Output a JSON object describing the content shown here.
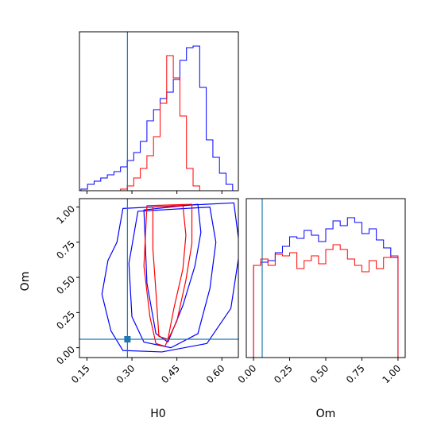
{
  "chart_data": {
    "type": "corner",
    "colors": {
      "series_a": "#0000ff",
      "series_b": "#ff0000",
      "truth": "#1f77b4",
      "frame": "#000000"
    },
    "parameters": [
      "H0",
      "Om"
    ],
    "truth": {
      "H0": 0.285,
      "Om": 0.06
    },
    "panels": [
      {
        "id": "hist-h0",
        "kind": "histogram",
        "xlim": [
          0.125,
          0.655
        ],
        "ylim": [
          0,
          1.0
        ],
        "bins": [
          0.13,
          0.152,
          0.174,
          0.196,
          0.218,
          0.24,
          0.262,
          0.284,
          0.306,
          0.328,
          0.35,
          0.372,
          0.394,
          0.416,
          0.438,
          0.46,
          0.482,
          0.504,
          0.526,
          0.548,
          0.57,
          0.592,
          0.614,
          0.636
        ],
        "series": [
          {
            "values": [
              0.01,
              0.04,
              0.06,
              0.08,
              0.1,
              0.12,
              0.15,
              0.19,
              0.24,
              0.31,
              0.44,
              0.51,
              0.58,
              0.62,
              0.7,
              0.82,
              0.9,
              0.91,
              0.65,
              0.32,
              0.21,
              0.11,
              0.04
            ]
          },
          {
            "values": [
              0,
              0,
              0,
              0,
              0,
              0,
              0.01,
              0.03,
              0.08,
              0.14,
              0.22,
              0.34,
              0.55,
              0.85,
              0.71,
              0.47,
              0.14,
              0.03,
              0,
              0,
              0,
              0,
              0
            ]
          }
        ]
      },
      {
        "id": "hist-om",
        "kind": "histogram",
        "xlim": [
          -0.05,
          1.05
        ],
        "ylim": [
          0,
          1.0
        ],
        "bins": [
          0.0,
          0.05,
          0.1,
          0.15,
          0.2,
          0.25,
          0.3,
          0.35,
          0.4,
          0.45,
          0.5,
          0.55,
          0.6,
          0.65,
          0.7,
          0.75,
          0.8,
          0.85,
          0.9,
          0.95,
          1.0
        ],
        "series": [
          {
            "values": [
              0.58,
              0.6,
              0.61,
              0.66,
              0.7,
              0.76,
              0.75,
              0.8,
              0.77,
              0.73,
              0.81,
              0.86,
              0.83,
              0.88,
              0.85,
              0.78,
              0.81,
              0.74,
              0.69,
              0.63
            ]
          },
          {
            "values": [
              0.58,
              0.62,
              0.58,
              0.65,
              0.64,
              0.66,
              0.56,
              0.61,
              0.64,
              0.59,
              0.68,
              0.71,
              0.68,
              0.62,
              0.58,
              0.54,
              0.61,
              0.56,
              0.63,
              0.64
            ]
          }
        ]
      },
      {
        "id": "contour-h0-om",
        "kind": "contour",
        "xlim": [
          0.125,
          0.655
        ],
        "ylim": [
          -0.07,
          1.06
        ],
        "series": [
          {
            "levels": [
              [
                [
                  0.27,
                  0.99
                ],
                [
                  0.25,
                  0.75
                ],
                [
                  0.22,
                  0.62
                ],
                [
                  0.2,
                  0.38
                ],
                [
                  0.23,
                  0.12
                ],
                [
                  0.27,
                  -0.02
                ],
                [
                  0.4,
                  -0.03
                ],
                [
                  0.55,
                  0.03
                ],
                [
                  0.63,
                  0.28
                ],
                [
                  0.66,
                  0.7
                ],
                [
                  0.64,
                  1.03
                ]
              ],
              [
                [
                  0.32,
                  0.97
                ],
                [
                  0.29,
                  0.6
                ],
                [
                  0.3,
                  0.22
                ],
                [
                  0.34,
                  0.04
                ],
                [
                  0.43,
                  0.0
                ],
                [
                  0.52,
                  0.1
                ],
                [
                  0.56,
                  0.42
                ],
                [
                  0.58,
                  0.75
                ],
                [
                  0.56,
                  1.0
                ]
              ],
              [
                [
                  0.34,
                  0.98
                ],
                [
                  0.35,
                  0.46
                ],
                [
                  0.38,
                  0.1
                ],
                [
                  0.42,
                  0.04
                ],
                [
                  0.47,
                  0.3
                ],
                [
                  0.51,
                  0.58
                ],
                [
                  0.53,
                  0.82
                ],
                [
                  0.52,
                  1.02
                ]
              ]
            ]
          },
          {
            "levels": [
              [
                [
                  0.35,
                  1.01
                ],
                [
                  0.34,
                  0.58
                ],
                [
                  0.36,
                  0.22
                ],
                [
                  0.38,
                  0.03
                ],
                [
                  0.41,
                  0.01
                ],
                [
                  0.45,
                  0.19
                ],
                [
                  0.48,
                  0.48
                ],
                [
                  0.5,
                  0.74
                ],
                [
                  0.5,
                  1.02
                ]
              ],
              [
                [
                  0.37,
                  1.0
                ],
                [
                  0.37,
                  0.7
                ],
                [
                  0.38,
                  0.4
                ],
                [
                  0.39,
                  0.08
                ],
                [
                  0.42,
                  0.06
                ],
                [
                  0.44,
                  0.28
                ],
                [
                  0.47,
                  0.56
                ],
                [
                  0.48,
                  0.8
                ],
                [
                  0.47,
                  1.01
                ]
              ]
            ]
          }
        ]
      }
    ],
    "axes": {
      "x_h0": {
        "label": "H0",
        "ticks": [
          0.15,
          0.3,
          0.45,
          0.6
        ],
        "tick_labels": [
          "0.15",
          "0.30",
          "0.45",
          "0.60"
        ]
      },
      "y_om": {
        "label": "Om",
        "ticks": [
          0.0,
          0.25,
          0.5,
          0.75,
          1.0
        ],
        "tick_labels": [
          "0.00",
          "0.25",
          "0.50",
          "0.75",
          "1.00"
        ]
      },
      "x_om": {
        "label": "Om",
        "ticks": [
          0.0,
          0.25,
          0.5,
          0.75,
          1.0
        ],
        "tick_labels": [
          "0.00",
          "0.25",
          "0.50",
          "0.75",
          "1.00"
        ]
      }
    },
    "grid": false,
    "legend": "none"
  }
}
